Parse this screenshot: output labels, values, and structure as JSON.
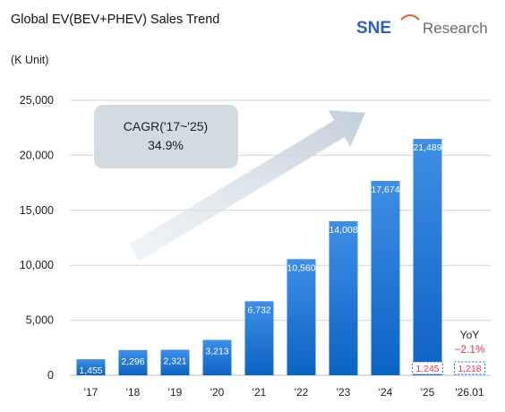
{
  "header": {
    "title": "Global EV(BEV+PHEV) Sales Trend",
    "unit": "(K Unit)",
    "logo_mark": "SNE",
    "logo_text": "Research"
  },
  "chart_data": {
    "type": "bar",
    "title": "Global EV(BEV+PHEV) Sales Trend",
    "ylabel": "(K Unit)",
    "xlabel": "",
    "ylim": [
      0,
      25000
    ],
    "yticks": [
      0,
      5000,
      10000,
      15000,
      20000,
      25000
    ],
    "ytick_labels": [
      "0",
      "5,000",
      "10,000",
      "15,000",
      "20,000",
      "25,000"
    ],
    "categories": [
      "'17",
      "'18",
      "'19",
      "'20",
      "'21",
      "'22",
      "'23",
      "'24",
      "'25",
      "'26.01"
    ],
    "values": [
      1455,
      2296,
      2321,
      3213,
      6732,
      10560,
      14008,
      17674,
      21489,
      null
    ],
    "value_labels": [
      "1,455",
      "2,296",
      "2,321",
      "3,213",
      "6,732",
      "10,560",
      "14,008",
      "17,674",
      "21,489",
      ""
    ],
    "january_comparison": {
      "values": [
        1245,
        1218
      ],
      "labels": [
        "1,245",
        "1,218"
      ],
      "categories": [
        "'25",
        "'26.01"
      ]
    },
    "yoy_label": "YoY",
    "yoy_value": "−2.1%",
    "cagr_label": "CAGR('17~'25)",
    "cagr_value": "34.9%",
    "grid": true,
    "colors": {
      "bar_top": "#3f8ee6",
      "bar_bottom": "#0b63c4",
      "grid": "#d4d4d4",
      "arrow": "#c9d4df",
      "callout_bg": "#d3dbe2",
      "jan_label": "#e8344a",
      "jan_border": "#3f7fd8",
      "yoy_negative": "#e8344a"
    }
  }
}
